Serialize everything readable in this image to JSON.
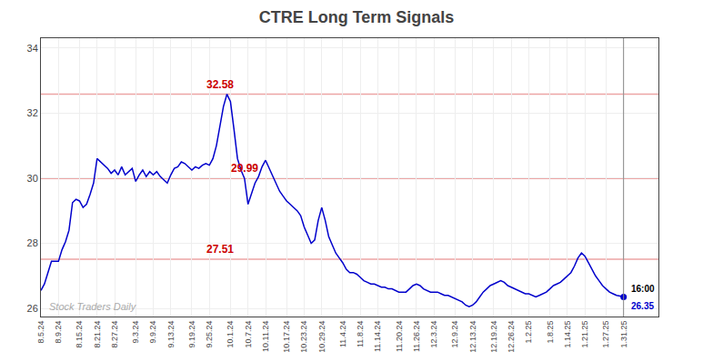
{
  "chart_data": {
    "type": "line",
    "title": "CTRE Long Term Signals",
    "color": "#0000CC",
    "grid": true,
    "ylim": [
      25.75,
      34.3
    ],
    "yticks": [
      26,
      28,
      30,
      32,
      34
    ],
    "categories": [
      "8.5.24",
      null,
      null,
      null,
      null,
      "8.9.24",
      null,
      null,
      null,
      null,
      null,
      "8.15.24",
      null,
      null,
      null,
      null,
      "8.21.24",
      null,
      null,
      null,
      null,
      "8.27.24",
      null,
      null,
      null,
      null,
      null,
      "9.3.24",
      null,
      null,
      null,
      null,
      "9.9.24",
      null,
      null,
      null,
      null,
      "9.13.24",
      null,
      null,
      null,
      null,
      null,
      "9.19.24",
      null,
      null,
      null,
      null,
      "9.25.24",
      null,
      null,
      null,
      null,
      null,
      "10.1.24",
      null,
      null,
      null,
      null,
      "10.7.24",
      null,
      null,
      null,
      null,
      "10.11.24",
      null,
      null,
      null,
      null,
      null,
      "10.17.24",
      null,
      null,
      null,
      null,
      "10.23.24",
      null,
      null,
      null,
      null,
      "10.29.24",
      null,
      null,
      null,
      null,
      null,
      "11.4.24",
      null,
      null,
      null,
      null,
      "11.8.24",
      null,
      null,
      null,
      null,
      "11.14.24",
      null,
      null,
      null,
      null,
      null,
      "11.20.24",
      null,
      null,
      null,
      null,
      "11.26.24",
      null,
      null,
      null,
      null,
      "12.3.24",
      null,
      null,
      null,
      null,
      null,
      "12.9.24",
      null,
      null,
      null,
      null,
      "12.13.24",
      null,
      null,
      null,
      null,
      null,
      "12.19.24",
      null,
      null,
      null,
      null,
      "12.26.24",
      null,
      null,
      null,
      null,
      "1.2.25",
      null,
      null,
      null,
      null,
      null,
      "1.8.25",
      null,
      null,
      null,
      null,
      "1.14.25",
      null,
      null,
      null,
      null,
      "1.21.25",
      null,
      null,
      null,
      null,
      null,
      "1.27.25",
      null,
      null,
      null,
      null,
      "1.31.25"
    ],
    "values": [
      26.55,
      26.75,
      27.1,
      27.45,
      27.45,
      27.45,
      27.8,
      28.05,
      28.4,
      29.25,
      29.35,
      29.3,
      29.1,
      29.2,
      29.5,
      29.85,
      30.6,
      30.5,
      30.4,
      30.3,
      30.15,
      30.25,
      30.1,
      30.35,
      30.1,
      30.2,
      30.3,
      29.9,
      30.1,
      30.25,
      30.05,
      30.2,
      30.1,
      30.2,
      30.05,
      29.95,
      29.85,
      30.1,
      30.3,
      30.35,
      30.5,
      30.45,
      30.35,
      30.25,
      30.35,
      30.3,
      30.4,
      30.45,
      30.4,
      30.6,
      31.0,
      31.6,
      32.2,
      32.58,
      32.35,
      31.5,
      30.6,
      30.25,
      29.99,
      29.2,
      29.55,
      29.85,
      30.05,
      30.35,
      30.55,
      30.3,
      30.05,
      29.8,
      29.6,
      29.45,
      29.3,
      29.2,
      29.1,
      29.0,
      28.85,
      28.5,
      28.25,
      28.0,
      28.1,
      28.7,
      29.1,
      28.7,
      28.2,
      27.95,
      27.7,
      27.55,
      27.4,
      27.2,
      27.1,
      27.1,
      27.05,
      26.95,
      26.85,
      26.8,
      26.75,
      26.75,
      26.7,
      26.65,
      26.65,
      26.6,
      26.6,
      26.55,
      26.5,
      26.5,
      26.5,
      26.6,
      26.7,
      26.75,
      26.7,
      26.6,
      26.55,
      26.5,
      26.5,
      26.5,
      26.45,
      26.4,
      26.4,
      26.35,
      26.3,
      26.25,
      26.2,
      26.1,
      26.05,
      26.1,
      26.2,
      26.35,
      26.5,
      26.6,
      26.7,
      26.75,
      26.8,
      26.85,
      26.8,
      26.7,
      26.65,
      26.6,
      26.55,
      26.5,
      26.45,
      26.45,
      26.4,
      26.35,
      26.4,
      26.45,
      26.5,
      26.6,
      26.7,
      26.75,
      26.8,
      26.9,
      27.0,
      27.1,
      27.3,
      27.55,
      27.7,
      27.6,
      27.4,
      27.2,
      27.0,
      26.85,
      26.7,
      26.6,
      26.5,
      26.45,
      26.4,
      26.38,
      26.35
    ],
    "horizontal_lines": [
      {
        "value": 32.58,
        "label": "32.58",
        "x": 51,
        "color": "#cc0000"
      },
      {
        "value": 29.99,
        "label": "29.99",
        "x": 58,
        "color": "#cc0000"
      },
      {
        "value": 27.51,
        "label": "27.51",
        "x": 51,
        "color": "#cc0000"
      }
    ],
    "watermark": "Stock Traders Daily",
    "end_label": {
      "time": "16:00",
      "value": 26.35
    }
  }
}
